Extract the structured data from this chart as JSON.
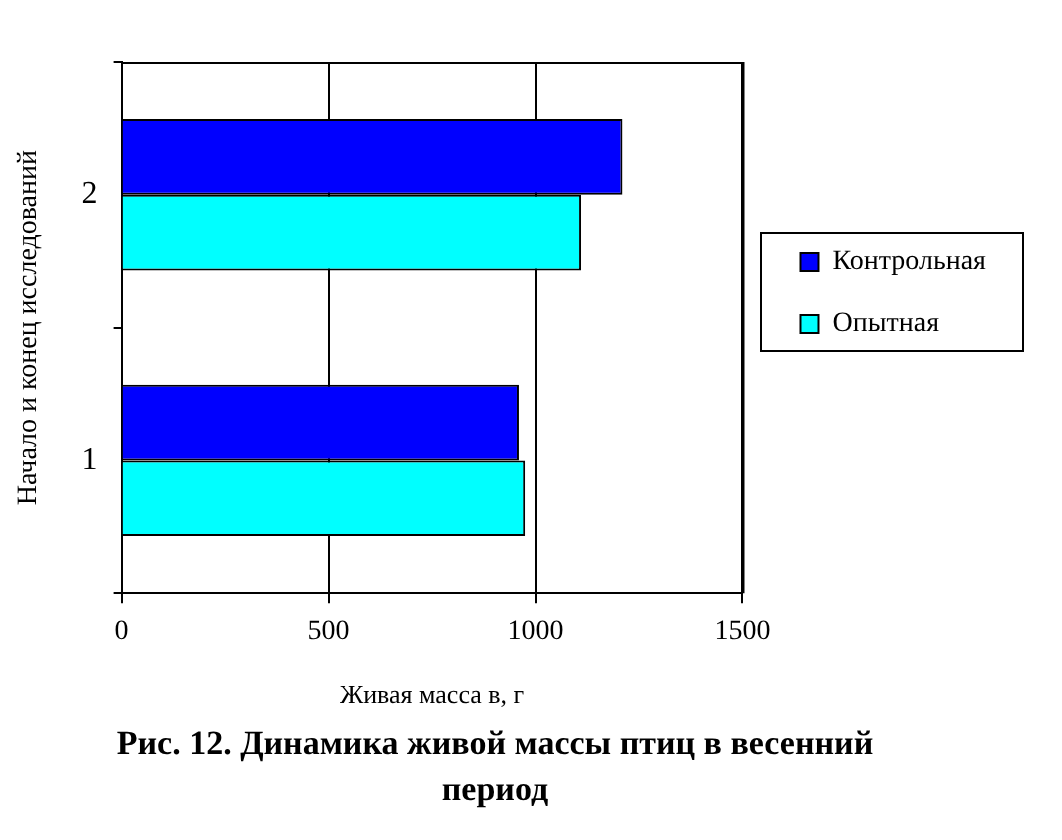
{
  "chart_data": {
    "type": "bar",
    "orientation": "horizontal",
    "title": "Рис. 12. Динамика живой массы птиц в весенний период",
    "xlabel": "Живая масса в, г",
    "ylabel": "Начало и конец исследований",
    "categories": [
      "2",
      "1"
    ],
    "series": [
      {
        "name": "Контрольная",
        "color": "#0000ff",
        "values": [
          1210,
          960
        ]
      },
      {
        "name": "Опытная",
        "color": "#00ffff",
        "values": [
          1110,
          975
        ]
      }
    ],
    "xlim": [
      0,
      1500
    ],
    "xticks": [
      0,
      500,
      1000,
      1500
    ],
    "grid": "x",
    "legend": "right"
  }
}
